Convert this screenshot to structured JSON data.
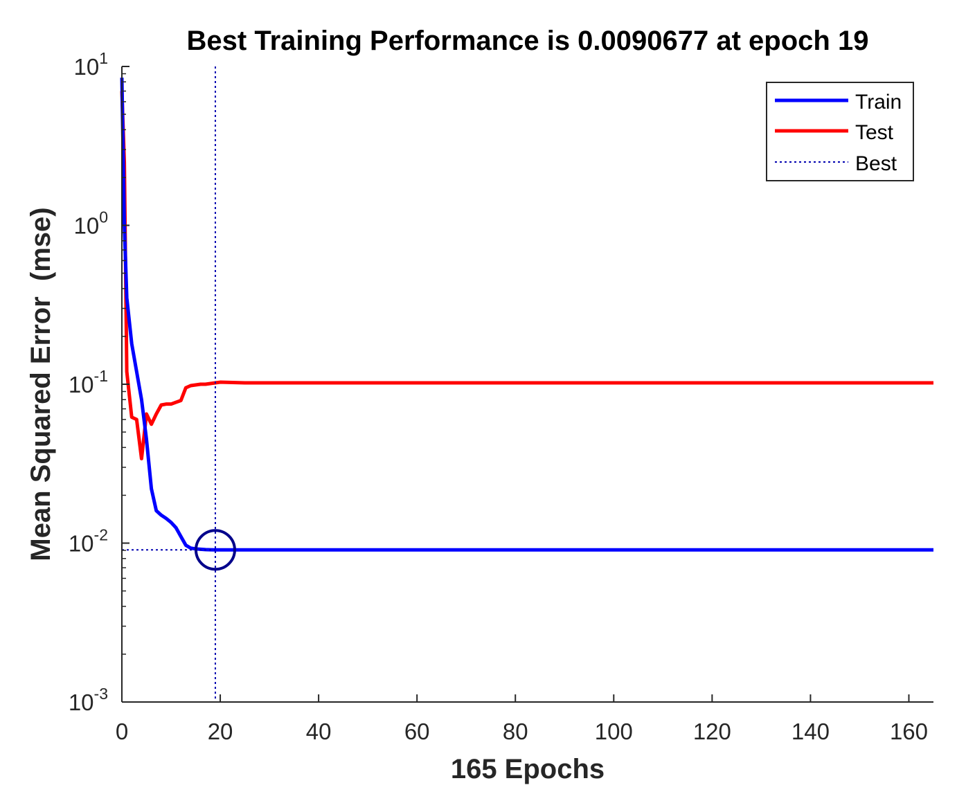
{
  "chart_data": {
    "type": "line",
    "title": "Best Training Performance is 0.0090677 at epoch 19",
    "xlabel": "165 Epochs",
    "ylabel": "Mean Squared Error  (mse)",
    "xlim": [
      0,
      165
    ],
    "ylim": [
      0.001,
      10
    ],
    "yscale": "log",
    "grid": false,
    "legend_position": "top-right",
    "x_ticks": [
      0,
      20,
      40,
      60,
      80,
      100,
      120,
      140,
      160
    ],
    "y_ticks": [
      {
        "value": 0.001,
        "base": "10",
        "exp": "-3"
      },
      {
        "value": 0.01,
        "base": "10",
        "exp": "-2"
      },
      {
        "value": 0.1,
        "base": "10",
        "exp": "-1"
      },
      {
        "value": 1,
        "base": "10",
        "exp": "0"
      },
      {
        "value": 10,
        "base": "10",
        "exp": "1"
      }
    ],
    "series": [
      {
        "name": "Train",
        "color": "#0000ff",
        "style": "solid",
        "x": [
          0,
          0.5,
          1,
          2,
          3,
          4,
          5,
          6,
          7,
          8,
          9,
          10,
          11,
          12,
          13,
          14,
          15,
          16,
          17,
          18,
          19,
          20,
          25,
          30,
          40,
          60,
          80,
          100,
          120,
          140,
          165
        ],
        "y": [
          8.5,
          1.0,
          0.35,
          0.18,
          0.12,
          0.08,
          0.045,
          0.022,
          0.016,
          0.015,
          0.0143,
          0.0135,
          0.0125,
          0.011,
          0.0097,
          0.0093,
          0.0092,
          0.00915,
          0.0091,
          0.00908,
          0.0090677,
          0.0090677,
          0.0090677,
          0.0090677,
          0.0090677,
          0.0090677,
          0.0090677,
          0.0090677,
          0.0090677,
          0.0090677,
          0.0090677
        ]
      },
      {
        "name": "Test",
        "color": "#ff0000",
        "style": "solid",
        "x": [
          0,
          0.5,
          1,
          2,
          3,
          4,
          5,
          6,
          7,
          8,
          9,
          10,
          11,
          12,
          13,
          14,
          15,
          16,
          17,
          18,
          19,
          20,
          25,
          30,
          40,
          60,
          80,
          100,
          120,
          140,
          165
        ],
        "y": [
          7.0,
          2.5,
          0.12,
          0.062,
          0.06,
          0.034,
          0.065,
          0.056,
          0.065,
          0.074,
          0.075,
          0.075,
          0.077,
          0.079,
          0.095,
          0.098,
          0.099,
          0.1,
          0.1,
          0.101,
          0.102,
          0.103,
          0.102,
          0.102,
          0.102,
          0.102,
          0.102,
          0.102,
          0.102,
          0.102,
          0.102
        ]
      }
    ],
    "best": {
      "name": "Best",
      "color": "#0000b0",
      "style": "dotted",
      "epoch": 19,
      "value": 0.0090677,
      "marker": "circle",
      "marker_color": "#00008b"
    }
  }
}
